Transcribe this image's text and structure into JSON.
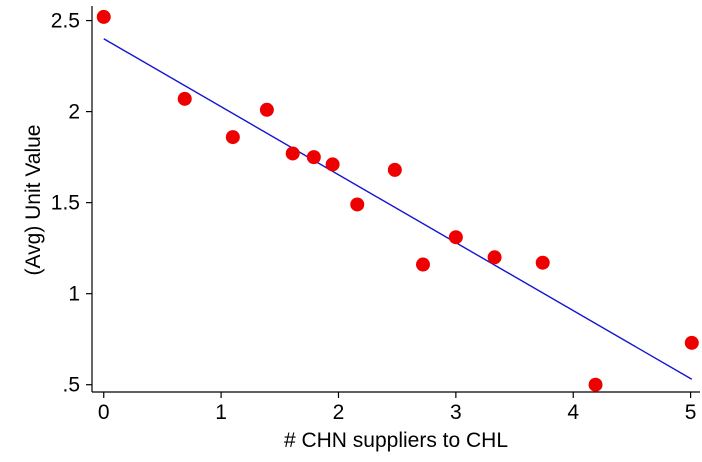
{
  "chart_data": {
    "type": "scatter",
    "xlabel": "# CHN suppliers to CHL",
    "ylabel": "(Avg) Unit Value",
    "xlim": [
      -0.1,
      5.08
    ],
    "ylim": [
      0.46,
      2.58
    ],
    "x_ticks": [
      0,
      1,
      2,
      3,
      4,
      5
    ],
    "x_tick_labels": [
      "0",
      "1",
      "2",
      "3",
      "4",
      "5"
    ],
    "y_ticks": [
      0.5,
      1,
      1.5,
      2,
      2.5
    ],
    "y_tick_labels": [
      ".5",
      "1",
      "1.5",
      "2",
      "2.5"
    ],
    "grid": false,
    "series": [
      {
        "kind": "points",
        "color": "#ee0000",
        "x": [
          0,
          0.69,
          1.1,
          1.39,
          1.61,
          1.79,
          1.95,
          2.16,
          2.48,
          2.72,
          3.0,
          3.33,
          3.74,
          4.19,
          5.01
        ],
        "y": [
          2.52,
          2.07,
          1.86,
          2.01,
          1.77,
          1.75,
          1.71,
          1.49,
          1.68,
          1.16,
          1.31,
          1.2,
          1.17,
          0.5,
          0.73
        ]
      },
      {
        "kind": "fit-line",
        "color": "#1414d2",
        "x": [
          0,
          5.01
        ],
        "y": [
          2.4,
          0.53
        ]
      }
    ]
  }
}
